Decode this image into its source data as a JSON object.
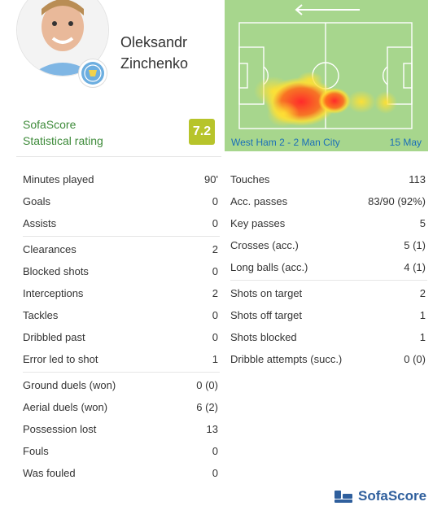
{
  "player": {
    "first_name": "Oleksandr",
    "last_name": "Zinchenko"
  },
  "rating": {
    "label_line1": "SofaScore",
    "label_line2": "Statistical rating",
    "value": "7.2",
    "color": "#b7c42b"
  },
  "match": {
    "name": "West Ham 2 - 2 Man City",
    "date": "15 May"
  },
  "left_stats": [
    {
      "label": "Minutes played",
      "value": "90'"
    },
    {
      "label": "Goals",
      "value": "0"
    },
    {
      "label": "Assists",
      "value": "0"
    },
    {
      "label": "Clearances",
      "value": "2"
    },
    {
      "label": "Blocked shots",
      "value": "0"
    },
    {
      "label": "Interceptions",
      "value": "2"
    },
    {
      "label": "Tackles",
      "value": "0"
    },
    {
      "label": "Dribbled past",
      "value": "0"
    },
    {
      "label": "Error led to shot",
      "value": "1"
    },
    {
      "label": "Ground duels (won)",
      "value": "0 (0)"
    },
    {
      "label": "Aerial duels (won)",
      "value": "6 (2)"
    },
    {
      "label": "Possession lost",
      "value": "13"
    },
    {
      "label": "Fouls",
      "value": "0"
    },
    {
      "label": "Was fouled",
      "value": "0"
    }
  ],
  "right_stats": [
    {
      "label": "Touches",
      "value": "113"
    },
    {
      "label": "Acc. passes",
      "value": "83/90 (92%)"
    },
    {
      "label": "Key passes",
      "value": "5"
    },
    {
      "label": "Crosses (acc.)",
      "value": "5 (1)"
    },
    {
      "label": "Long balls (acc.)",
      "value": "4 (1)"
    },
    {
      "label": "Shots on target",
      "value": "2"
    },
    {
      "label": "Shots off target",
      "value": "1"
    },
    {
      "label": "Shots blocked",
      "value": "1"
    },
    {
      "label": "Dribble attempts (succ.)",
      "value": "0 (0)"
    }
  ],
  "footer": {
    "brand": "SofaScore",
    "brand_color": "#2f5f9d"
  },
  "icons": {
    "avatar": "player-photo",
    "badge": "manchester-city-crest",
    "arrow": "left-arrow-icon",
    "logo": "sofascore-logo-icon"
  }
}
